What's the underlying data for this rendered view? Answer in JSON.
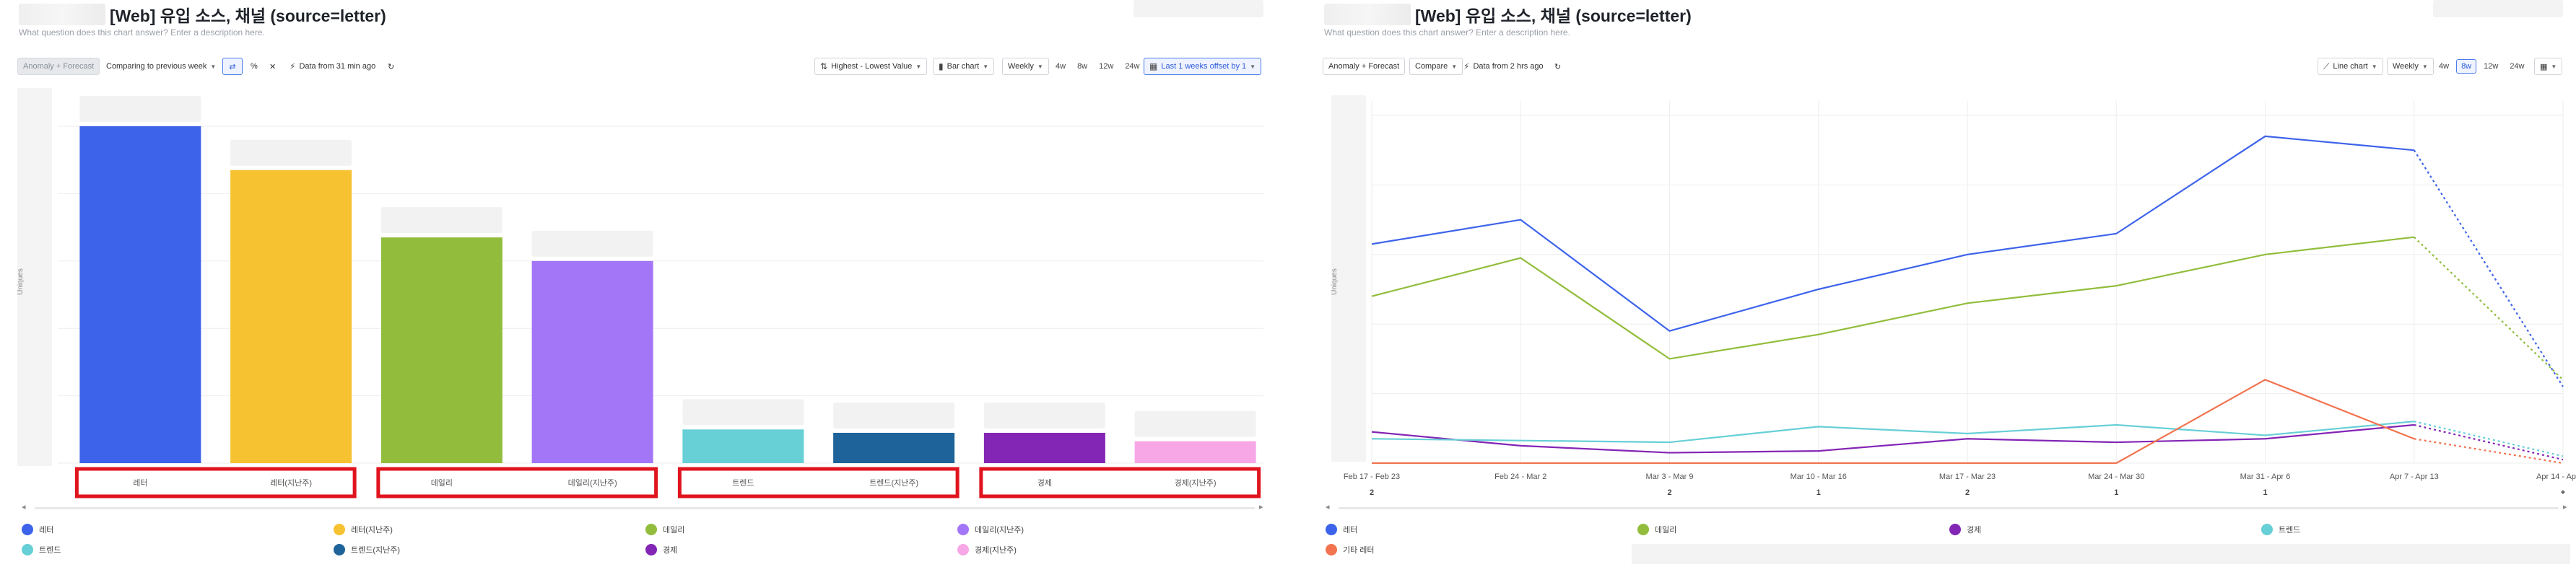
{
  "left": {
    "title": "[Web] 유입 소스, 채널 (source=letter)",
    "subtitle": "What question does this chart answer? Enter a description here.",
    "toolbar": {
      "anomaly": "Anomaly + Forecast",
      "comparing": "Comparing to previous week",
      "data_from": "Data from 31 min ago",
      "sort": "Highest - Lowest Value",
      "chart_type": "Bar chart",
      "interval": "Weekly",
      "ranges": [
        "4w",
        "8w",
        "12w",
        "24w"
      ],
      "offset": "Last 1 weeks offset by 1"
    },
    "ylabel": "Uniques",
    "legend": [
      {
        "label": "레터",
        "color": "#3d63ea",
        "icon": "circle"
      },
      {
        "label": "레터(지난주)",
        "color": "#f7c231",
        "icon": "circle"
      },
      {
        "label": "데일리",
        "color": "#92bd3c",
        "icon": "circle"
      },
      {
        "label": "데일리(지난주)",
        "color": "#a375f7",
        "icon": "circle"
      },
      {
        "label": "트렌드",
        "color": "#67cfd6",
        "icon": "circle"
      },
      {
        "label": "트렌드(지난주)",
        "color": "#1e6399",
        "icon": "circle"
      },
      {
        "label": "경제",
        "color": "#8325b5",
        "icon": "circle"
      },
      {
        "label": "경제(지난주)",
        "color": "#f7a7e6",
        "icon": "circle"
      }
    ]
  },
  "right": {
    "title": "[Web] 유입 소스, 채널 (source=letter)",
    "subtitle": "What question does this chart answer? Enter a description here.",
    "toolbar": {
      "anomaly": "Anomaly + Forecast",
      "compare": "Compare",
      "data_from": "Data from 2 hrs ago",
      "chart_type": "Line chart",
      "interval": "Weekly",
      "ranges": [
        "4w",
        "8w",
        "12w",
        "24w"
      ],
      "active_range": "8w"
    },
    "ylabel": "Uniques",
    "legend": [
      {
        "label": "레터",
        "color": "#3d63ea",
        "icon": "circle"
      },
      {
        "label": "데일리",
        "color": "#92bd3c",
        "icon": "circle"
      },
      {
        "label": "경제",
        "color": "#8325b5",
        "icon": "circle"
      },
      {
        "label": "트렌드",
        "color": "#67cfd6",
        "icon": "circle"
      },
      {
        "label": "기타 레터",
        "color": "#f2734f",
        "icon": "circle"
      }
    ]
  },
  "chart_data": [
    {
      "type": "bar",
      "title": "[Web] 유입 소스, 채널 (source=letter)",
      "ylabel": "Uniques",
      "ylim": [
        0,
        100
      ],
      "groups": [
        "레터",
        "데일리",
        "트렌드",
        "경제"
      ],
      "categories": [
        "레터",
        "레터(지난주)",
        "데일리",
        "데일리(지난주)",
        "트렌드",
        "트렌드(지난주)",
        "경제",
        "경제(지난주)"
      ],
      "values": [
        100,
        87,
        67,
        60,
        10,
        9,
        9,
        6.5
      ],
      "colors": [
        "#3d63ea",
        "#f7c231",
        "#92bd3c",
        "#a375f7",
        "#67cfd6",
        "#1e6399",
        "#8325b5",
        "#f7a7e6"
      ],
      "highlight": "red boxes around each group of category labels"
    },
    {
      "type": "line",
      "title": "[Web] 유입 소스, 채널 (source=letter)",
      "ylabel": "Uniques",
      "ylim": [
        0,
        100
      ],
      "x": [
        "Feb 17 - Feb 23",
        "Feb 24 - Mar 2",
        "Mar 3 - Mar 9",
        "Mar 10 - Mar 16",
        "Mar 17 - Mar 23",
        "Mar 24 - Mar 30",
        "Mar 31 - Apr 6",
        "Apr 7 - Apr 13",
        "Apr 14 - Apr 20"
      ],
      "annotations": [
        "2",
        "",
        "2",
        "1",
        "2",
        "1",
        "1",
        "",
        "+"
      ],
      "dotted_from_index": 7,
      "series": [
        {
          "name": "레터",
          "color": "#3d63ea",
          "values": [
            63,
            70,
            38,
            50,
            60,
            66,
            94,
            90,
            22
          ]
        },
        {
          "name": "데일리",
          "color": "#92bd3c",
          "values": [
            48,
            59,
            30,
            37,
            46,
            51,
            60,
            65,
            24
          ]
        },
        {
          "name": "경제",
          "color": "#8325b5",
          "values": [
            9,
            5,
            3,
            3.5,
            7,
            6,
            7,
            11,
            1
          ]
        },
        {
          "name": "트렌드",
          "color": "#67cfd6",
          "values": [
            7,
            6.5,
            6,
            10.5,
            8.5,
            11,
            8,
            12,
            2
          ]
        },
        {
          "name": "기타 레터",
          "color": "#f2734f",
          "values": [
            0,
            0,
            0,
            0,
            0,
            0,
            24,
            7,
            0
          ]
        }
      ]
    }
  ]
}
